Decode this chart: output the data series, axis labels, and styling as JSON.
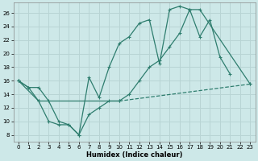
{
  "xlabel": "Humidex (Indice chaleur)",
  "background_color": "#cde8e8",
  "grid_color": "#b8d4d4",
  "line_color": "#2e7d6e",
  "xlim": [
    -0.5,
    23.5
  ],
  "ylim": [
    7,
    27.5
  ],
  "xticks": [
    0,
    1,
    2,
    3,
    4,
    5,
    6,
    7,
    8,
    9,
    10,
    11,
    12,
    13,
    14,
    15,
    16,
    17,
    18,
    19,
    20,
    21,
    22,
    23
  ],
  "yticks": [
    8,
    10,
    12,
    14,
    16,
    18,
    20,
    22,
    24,
    26
  ],
  "line1_x": [
    0,
    1,
    2,
    3,
    4,
    5,
    6,
    7,
    8,
    9,
    10,
    11,
    12,
    13,
    14,
    15,
    16,
    17,
    18,
    19,
    20,
    21
  ],
  "line1_y": [
    16,
    15,
    15,
    13,
    10,
    9.5,
    8,
    16.5,
    13.5,
    18,
    21.5,
    22.5,
    24.5,
    25,
    18.5,
    26.5,
    27,
    26.5,
    22.5,
    25,
    19.5,
    17
  ],
  "line2_x": [
    0,
    1,
    2,
    3,
    4,
    5,
    6,
    7,
    8,
    9,
    10,
    23
  ],
  "line2_y": [
    16,
    15,
    13,
    10,
    9.5,
    9.5,
    8,
    11,
    12,
    13,
    13,
    15.5
  ],
  "line3_x": [
    0,
    2,
    10,
    11,
    12,
    13,
    14,
    15,
    16,
    17,
    18,
    23
  ],
  "line3_y": [
    16,
    13,
    13,
    14,
    16,
    18,
    19,
    21,
    23,
    26.5,
    26.5,
    15.5
  ]
}
